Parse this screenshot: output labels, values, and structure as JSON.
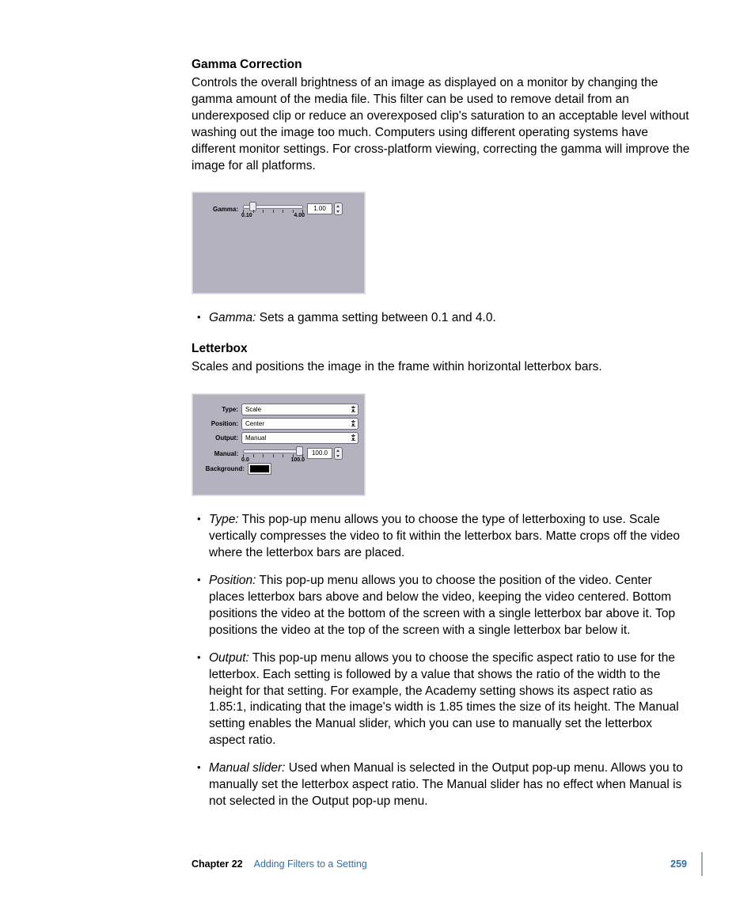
{
  "section1": {
    "heading": "Gamma Correction",
    "body": "Controls the overall brightness of an image as displayed on a monitor by changing the gamma amount of the media file. This filter can be used to remove detail from an underexposed clip or reduce an overexposed clip's saturation to an acceptable level without washing out the image too much. Computers using different operating systems have different monitor settings. For cross-platform viewing, correcting the gamma will improve the image for all platforms."
  },
  "gamma_panel": {
    "label": "Gamma:",
    "value": "1.00",
    "min": "0.10",
    "max": "4.00",
    "slider_thumb_pct": 12,
    "bg_color": "#b5b2c0",
    "track_color": "#ededf1",
    "field_bg": "#ffffff"
  },
  "gamma_bullet": {
    "term": "Gamma:",
    "desc": "  Sets a gamma setting between 0.1 and 4.0."
  },
  "section2": {
    "heading": "Letterbox",
    "body": "Scales and positions the image in the frame within horizontal letterbox bars."
  },
  "letterbox_panel": {
    "rows": {
      "type": {
        "label": "Type:",
        "value": "Scale"
      },
      "position": {
        "label": "Position:",
        "value": "Center"
      },
      "output": {
        "label": "Output:",
        "value": "Manual"
      },
      "manual": {
        "label": "Manual:",
        "value": "100.0",
        "min": "0.0",
        "max": "100.0",
        "thumb_pct": 86
      },
      "background": {
        "label": "Background:",
        "color": "#000000"
      }
    },
    "bg_color": "#b5b2c0"
  },
  "letterbox_bullets": [
    {
      "term": "Type:",
      "desc": "  This pop-up menu allows you to choose the type of letterboxing to use. Scale vertically compresses the video to fit within the letterbox bars. Matte crops off the video where the letterbox bars are placed."
    },
    {
      "term": "Position:",
      "desc": "  This pop-up menu allows you to choose the position of the video. Center places letterbox bars above and below the video, keeping the video centered. Bottom positions the video at the bottom of the screen with a single letterbox bar above it. Top positions the video at the top of the screen with a single letterbox bar below it."
    },
    {
      "term": "Output:",
      "desc": "  This pop-up menu allows you to choose the specific aspect ratio to use for the letterbox. Each setting is followed by a value that shows the ratio of the width to the height for that setting. For example, the Academy setting shows its aspect ratio as 1.85:1, indicating that the image's width is 1.85 times the size of its height. The Manual setting enables the Manual slider, which you can use to manually set the letterbox aspect ratio."
    },
    {
      "term": "Manual slider:",
      "desc": "  Used when Manual is selected in the Output pop-up menu. Allows you to manually set the letterbox aspect ratio. The Manual slider has no effect when Manual is not selected in the Output pop-up menu."
    }
  ],
  "footer": {
    "chapter": "Chapter 22",
    "title": "Adding Filters to a Setting",
    "page": "259",
    "title_color": "#2a6fb0"
  }
}
